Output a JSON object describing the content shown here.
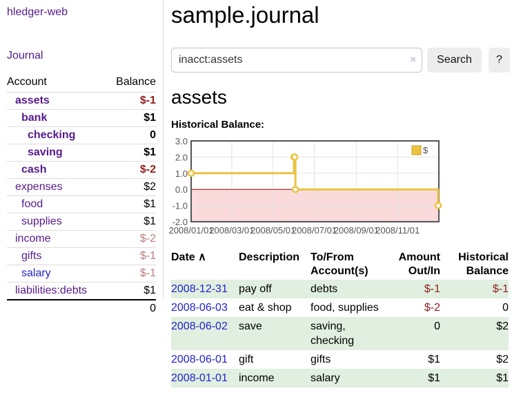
{
  "app": {
    "title": "hledger-web",
    "nav_journal": "Journal"
  },
  "colors": {
    "link_purple": "#551a8b",
    "link_blue": "#2222cc",
    "negative_strong": "#8f1d1d",
    "negative_faded": "#b97c7c",
    "row_stripe_green": "#e0efdf",
    "series_gold": "#edc240"
  },
  "sidebar": {
    "header": {
      "account": "Account",
      "balance": "Balance"
    },
    "accounts": [
      {
        "name": "assets",
        "balance": "$-1",
        "depth": 1,
        "bold": true,
        "negative": "strong"
      },
      {
        "name": "bank",
        "balance": "$1",
        "depth": 2,
        "bold": true
      },
      {
        "name": "checking",
        "balance": "0",
        "depth": 3,
        "bold": true
      },
      {
        "name": "saving",
        "balance": "$1",
        "depth": 3,
        "bold": true
      },
      {
        "name": "cash",
        "balance": "$-2",
        "depth": 2,
        "bold": true,
        "negative": "strong"
      },
      {
        "name": "expenses",
        "balance": "$2",
        "depth": 1
      },
      {
        "name": "food",
        "balance": "$1",
        "depth": 2
      },
      {
        "name": "supplies",
        "balance": "$1",
        "depth": 2
      },
      {
        "name": "income",
        "balance": "$-2",
        "depth": 1,
        "negative": "faded"
      },
      {
        "name": "gifts",
        "balance": "$-1",
        "depth": 2,
        "negative": "faded"
      },
      {
        "name": "salary",
        "balance": "$-1",
        "depth": 2,
        "negative": "faded",
        "visited": false
      },
      {
        "name": "liabilities:debts",
        "balance": "$1",
        "depth": 1
      }
    ],
    "total": "0"
  },
  "header": {
    "title": "sample.journal"
  },
  "search": {
    "value": "inacct:assets",
    "clear_icon": "×",
    "search_label": "Search",
    "help_label": "?"
  },
  "register": {
    "heading": "assets",
    "chart_label": "Historical Balance:",
    "columns": {
      "date": "Date",
      "sort_icon": "∧",
      "description": "Description",
      "accounts": "To/From Account(s)",
      "amount": "Amount Out/In",
      "balance": "Historical Balance"
    },
    "rows": [
      {
        "date": "2008-12-31",
        "description": "pay off",
        "accounts": "debts",
        "amount": "$-1",
        "amount_neg": true,
        "balance": "$-1",
        "balance_neg": true
      },
      {
        "date": "2008-06-03",
        "description": "eat & shop",
        "accounts": "food, supplies",
        "amount": "$-2",
        "amount_neg": true,
        "balance": "0",
        "balance_neg": false
      },
      {
        "date": "2008-06-02",
        "description": "save",
        "accounts": "saving, checking",
        "amount": "0",
        "amount_neg": false,
        "balance": "$2",
        "balance_neg": false
      },
      {
        "date": "2008-06-01",
        "description": "gift",
        "accounts": "gifts",
        "amount": "$1",
        "amount_neg": false,
        "balance": "$2",
        "balance_neg": false
      },
      {
        "date": "2008-01-01",
        "description": "income",
        "accounts": "salary",
        "amount": "$1",
        "amount_neg": false,
        "balance": "$1",
        "balance_neg": false
      }
    ]
  },
  "chart_data": {
    "type": "line",
    "style": "step",
    "title": "Historical Balance:",
    "series": [
      {
        "name": "$",
        "color": "#edc240",
        "points": [
          [
            "2008-01-01",
            1
          ],
          [
            "2008-06-01",
            2
          ],
          [
            "2008-06-02",
            2
          ],
          [
            "2008-06-03",
            0
          ],
          [
            "2008-12-31",
            -1
          ]
        ]
      }
    ],
    "x_range": [
      "2008-01-01",
      "2009-01-01"
    ],
    "x_ticks": [
      "2008/01/01",
      "2008/03/01",
      "2008/05/01",
      "2008/07/01",
      "2008/09/01",
      "2008/11/01"
    ],
    "y_ticks": [
      3.0,
      2.0,
      1.0,
      0.0,
      -1.0,
      -2.0
    ],
    "ylim": [
      -2,
      3
    ],
    "grid": true,
    "legend": {
      "label": "$",
      "position": "top-right"
    },
    "negative_region_color": "#fadada",
    "zero_line_color": "#a00000",
    "border_color": "#545454",
    "grid_color": "#e3e3e3"
  }
}
